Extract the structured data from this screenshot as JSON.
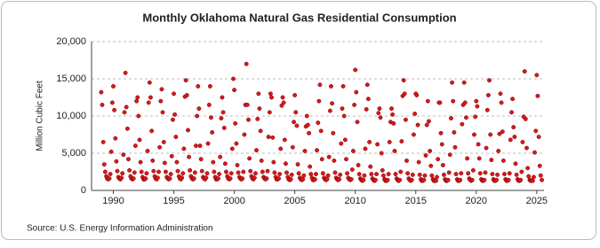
{
  "chart_data": {
    "type": "scatter",
    "title": "Monthly Oklahoma Natural Gas Residential Consumption",
    "y_label": "Million Cubic Feet",
    "source": "Source: U.S. Energy Information Administration",
    "color": "#d7191c",
    "grid": true,
    "xlim": [
      1988.2,
      2025.6
    ],
    "xticks": [
      1990,
      1995,
      2000,
      2005,
      2010,
      2015,
      2020,
      2025
    ],
    "ylim": [
      0,
      20000
    ],
    "yticks": [
      0,
      {
        "value": 5000,
        "label": "5,000"
      },
      {
        "value": 10000,
        "label": "10,000"
      },
      {
        "value": 15000,
        "label": "15,000"
      },
      {
        "value": 20000,
        "label": "20,000"
      }
    ],
    "x": [
      1989,
      1989.08,
      1989.17,
      1989.25,
      1989.33,
      1989.42,
      1989.5,
      1989.58,
      1989.67,
      1989.75,
      1989.83,
      1989.92,
      1990,
      1990.08,
      1990.17,
      1990.25,
      1990.33,
      1990.42,
      1990.5,
      1990.58,
      1990.67,
      1990.75,
      1990.83,
      1990.92,
      1991,
      1991.08,
      1991.17,
      1991.25,
      1991.33,
      1991.42,
      1991.5,
      1991.58,
      1991.67,
      1991.75,
      1991.83,
      1991.92,
      1992,
      1992.08,
      1992.17,
      1992.25,
      1992.33,
      1992.42,
      1992.5,
      1992.58,
      1992.67,
      1992.75,
      1992.83,
      1992.92,
      1993,
      1993.08,
      1993.17,
      1993.25,
      1993.33,
      1993.42,
      1993.5,
      1993.58,
      1993.67,
      1993.75,
      1993.83,
      1993.92,
      1994,
      1994.08,
      1994.17,
      1994.25,
      1994.33,
      1994.42,
      1994.5,
      1994.58,
      1994.67,
      1994.75,
      1994.83,
      1994.92,
      1995,
      1995.08,
      1995.17,
      1995.25,
      1995.33,
      1995.42,
      1995.5,
      1995.58,
      1995.67,
      1995.75,
      1995.83,
      1995.92,
      1996,
      1996.08,
      1996.17,
      1996.25,
      1996.33,
      1996.42,
      1996.5,
      1996.58,
      1996.67,
      1996.75,
      1996.83,
      1996.92,
      1997,
      1997.08,
      1997.17,
      1997.25,
      1997.33,
      1997.42,
      1997.5,
      1997.58,
      1997.67,
      1997.75,
      1997.83,
      1997.92,
      1998,
      1998.08,
      1998.17,
      1998.25,
      1998.33,
      1998.42,
      1998.5,
      1998.58,
      1998.67,
      1998.75,
      1998.83,
      1998.92,
      1999,
      1999.08,
      1999.17,
      1999.25,
      1999.33,
      1999.42,
      1999.5,
      1999.58,
      1999.67,
      1999.75,
      1999.83,
      1999.92,
      2000,
      2000.08,
      2000.17,
      2000.25,
      2000.33,
      2000.42,
      2000.5,
      2000.58,
      2000.67,
      2000.75,
      2000.83,
      2000.92,
      2001,
      2001.08,
      2001.17,
      2001.25,
      2001.33,
      2001.42,
      2001.5,
      2001.58,
      2001.67,
      2001.75,
      2001.83,
      2001.92,
      2002,
      2002.08,
      2002.17,
      2002.25,
      2002.33,
      2002.42,
      2002.5,
      2002.58,
      2002.67,
      2002.75,
      2002.83,
      2002.92,
      2003,
      2003.08,
      2003.17,
      2003.25,
      2003.33,
      2003.42,
      2003.5,
      2003.58,
      2003.67,
      2003.75,
      2003.83,
      2003.92,
      2004,
      2004.08,
      2004.17,
      2004.25,
      2004.33,
      2004.42,
      2004.5,
      2004.58,
      2004.67,
      2004.75,
      2004.83,
      2004.92,
      2005,
      2005.08,
      2005.17,
      2005.25,
      2005.33,
      2005.42,
      2005.5,
      2005.58,
      2005.67,
      2005.75,
      2005.83,
      2005.92,
      2006,
      2006.08,
      2006.17,
      2006.25,
      2006.33,
      2006.42,
      2006.5,
      2006.58,
      2006.67,
      2006.75,
      2006.83,
      2006.92,
      2007,
      2007.08,
      2007.17,
      2007.25,
      2007.33,
      2007.42,
      2007.5,
      2007.58,
      2007.67,
      2007.75,
      2007.83,
      2007.92,
      2008,
      2008.08,
      2008.17,
      2008.25,
      2008.33,
      2008.42,
      2008.5,
      2008.58,
      2008.67,
      2008.75,
      2008.83,
      2008.92,
      2009,
      2009.08,
      2009.17,
      2009.25,
      2009.33,
      2009.42,
      2009.5,
      2009.58,
      2009.67,
      2009.75,
      2009.83,
      2009.92,
      2010,
      2010.08,
      2010.17,
      2010.25,
      2010.33,
      2010.42,
      2010.5,
      2010.58,
      2010.67,
      2010.75,
      2010.83,
      2010.92,
      2011,
      2011.08,
      2011.17,
      2011.25,
      2011.33,
      2011.42,
      2011.5,
      2011.58,
      2011.67,
      2011.75,
      2011.83,
      2011.92,
      2012,
      2012.08,
      2012.17,
      2012.25,
      2012.33,
      2012.42,
      2012.5,
      2012.58,
      2012.67,
      2012.75,
      2012.83,
      2012.92,
      2013,
      2013.08,
      2013.17,
      2013.25,
      2013.33,
      2013.42,
      2013.5,
      2013.58,
      2013.67,
      2013.75,
      2013.83,
      2013.92,
      2014,
      2014.08,
      2014.17,
      2014.25,
      2014.33,
      2014.42,
      2014.5,
      2014.58,
      2014.67,
      2014.75,
      2014.83,
      2014.92,
      2015,
      2015.08,
      2015.17,
      2015.25,
      2015.33,
      2015.42,
      2015.5,
      2015.58,
      2015.67,
      2015.75,
      2015.83,
      2015.92,
      2016,
      2016.08,
      2016.17,
      2016.25,
      2016.33,
      2016.42,
      2016.5,
      2016.58,
      2016.67,
      2016.75,
      2016.83,
      2016.92,
      2017,
      2017.08,
      2017.17,
      2017.25,
      2017.33,
      2017.42,
      2017.5,
      2017.58,
      2017.67,
      2017.75,
      2017.83,
      2017.92,
      2018,
      2018.08,
      2018.17,
      2018.25,
      2018.33,
      2018.42,
      2018.5,
      2018.58,
      2018.67,
      2018.75,
      2018.83,
      2018.92,
      2019,
      2019.08,
      2019.17,
      2019.25,
      2019.33,
      2019.42,
      2019.5,
      2019.58,
      2019.67,
      2019.75,
      2019.83,
      2019.92,
      2020,
      2020.08,
      2020.17,
      2020.25,
      2020.33,
      2020.42,
      2020.5,
      2020.58,
      2020.67,
      2020.75,
      2020.83,
      2020.92,
      2021,
      2021.08,
      2021.17,
      2021.25,
      2021.33,
      2021.42,
      2021.5,
      2021.58,
      2021.67,
      2021.75,
      2021.83,
      2021.92,
      2022,
      2022.08,
      2022.17,
      2022.25,
      2022.33,
      2022.42,
      2022.5,
      2022.58,
      2022.67,
      2022.75,
      2022.83,
      2022.92,
      2023,
      2023.08,
      2023.17,
      2023.25,
      2023.33,
      2023.42,
      2023.5,
      2023.58,
      2023.67,
      2023.75,
      2023.83,
      2023.92,
      2024,
      2024.08,
      2024.17,
      2024.25,
      2024.33,
      2024.42,
      2024.5,
      2024.58,
      2024.67,
      2024.75,
      2024.83,
      2024.92,
      2025,
      2025.08,
      2025.17,
      2025.25,
      2025.33,
      2025.42
    ],
    "values": [
      13200,
      11500,
      6500,
      3500,
      2500,
      1900,
      1600,
      1500,
      1600,
      2200,
      5200,
      11800,
      14000,
      10800,
      7000,
      3900,
      2600,
      1800,
      1600,
      1500,
      1700,
      2300,
      4800,
      10500,
      15800,
      11200,
      8300,
      4200,
      2700,
      1900,
      1600,
      1500,
      1600,
      2400,
      6000,
      12000,
      12500,
      10000,
      6800,
      3800,
      2500,
      1800,
      1500,
      1500,
      1600,
      2300,
      5300,
      11800,
      14500,
      12500,
      8000,
      4000,
      2600,
      1900,
      1600,
      1500,
      1700,
      2500,
      5800,
      12000,
      13600,
      10500,
      6500,
      3700,
      2500,
      1800,
      1600,
      1500,
      1600,
      2200,
      4600,
      9500,
      13000,
      10200,
      7200,
      3800,
      2600,
      1900,
      1600,
      1500,
      1700,
      2300,
      5600,
      12600,
      14800,
      12800,
      8100,
      4500,
      2700,
      1900,
      1600,
      1500,
      1600,
      2400,
      6000,
      10000,
      14000,
      11000,
      6000,
      4200,
      2600,
      1800,
      1600,
      1500,
      1700,
      2300,
      6300,
      11500,
      14000,
      9800,
      7800,
      3800,
      2500,
      1800,
      1500,
      1500,
      1600,
      2200,
      4500,
      9700,
      12500,
      10500,
      8400,
      3600,
      2500,
      1900,
      1600,
      1500,
      1600,
      2300,
      5600,
      15000,
      13500,
      9000,
      6300,
      3400,
      2400,
      1800,
      1600,
      1500,
      1600,
      2500,
      7500,
      11500,
      17000,
      11500,
      9500,
      4300,
      2600,
      1900,
      1600,
      1500,
      1700,
      2300,
      5400,
      9600,
      13000,
      11000,
      8000,
      4000,
      2500,
      1800,
      1600,
      1500,
      1600,
      2600,
      7200,
      10500,
      13000,
      12500,
      7100,
      3800,
      2400,
      1800,
      1500,
      1500,
      1600,
      2200,
      5600,
      11400,
      12500,
      11800,
      6800,
      3600,
      2400,
      1800,
      1500,
      1400,
      1500,
      2100,
      5800,
      9200,
      12800,
      10500,
      8700,
      3500,
      2300,
      1700,
      1500,
      1400,
      1500,
      2000,
      5300,
      8600,
      10000,
      8800,
      7700,
      3200,
      2200,
      1700,
      1400,
      1400,
      1500,
      2200,
      5400,
      9100,
      12000,
      14200,
      8000,
      4200,
      2300,
      1700,
      1500,
      1400,
      1500,
      2000,
      4500,
      10700,
      14000,
      11700,
      7700,
      4000,
      2400,
      1700,
      1500,
      1400,
      1500,
      2100,
      6300,
      11000,
      14000,
      10000,
      6800,
      4200,
      2300,
      1700,
      1500,
      1400,
      1500,
      2800,
      5300,
      11500,
      16200,
      13200,
      9200,
      3400,
      2200,
      1600,
      1400,
      1300,
      1400,
      2000,
      5600,
      10900,
      14200,
      12300,
      6500,
      3200,
      2200,
      1600,
      1400,
      1300,
      1400,
      2200,
      6200,
      10400,
      11000,
      9800,
      5000,
      2700,
      2000,
      1500,
      1300,
      1300,
      1400,
      2200,
      6500,
      9200,
      11000,
      10200,
      9000,
      5300,
      2200,
      1600,
      1400,
      1300,
      1400,
      2500,
      6600,
      12700,
      14800,
      13000,
      9500,
      4000,
      2300,
      1600,
      1400,
      1300,
      1400,
      2100,
      7500,
      10300,
      13000,
      12800,
      8800,
      3800,
      2100,
      1500,
      1300,
      1300,
      1400,
      2000,
      4700,
      8800,
      12000,
      9300,
      5300,
      3300,
      2000,
      1500,
      1300,
      1300,
      1300,
      1800,
      4200,
      11800,
      11800,
      7700,
      6200,
      3400,
      2100,
      1500,
      1300,
      1300,
      1400,
      2400,
      4800,
      9700,
      14500,
      12000,
      7800,
      5800,
      2200,
      1500,
      1300,
      1300,
      1400,
      2300,
      8900,
      11500,
      14500,
      11800,
      9800,
      4300,
      2300,
      1600,
      1400,
      1300,
      1400,
      2700,
      7500,
      9900,
      12000,
      11300,
      6200,
      4300,
      2300,
      1500,
      1300,
      1300,
      1400,
      2400,
      5700,
      10800,
      12800,
      14800,
      7500,
      4100,
      2200,
      1500,
      1300,
      1300,
      1400,
      2100,
      5300,
      7600,
      13000,
      11800,
      7900,
      4000,
      2200,
      1500,
      1300,
      1300,
      1400,
      2300,
      6800,
      10500,
      12300,
      8500,
      7200,
      3600,
      2100,
      1500,
      1300,
      1300,
      1400,
      2500,
      6500,
      9900,
      16000,
      9600,
      5700,
      3000,
      1900,
      1400,
      1300,
      1300,
      1300,
      1800,
      5100,
      8000,
      15500,
      12700,
      7200,
      3300,
      2000,
      1400
    ]
  }
}
